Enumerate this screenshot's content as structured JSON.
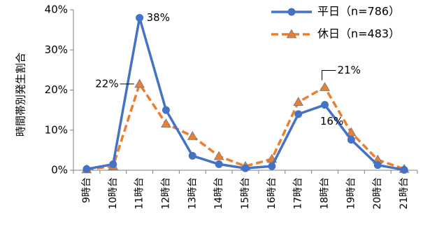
{
  "chart_data": {
    "type": "line",
    "ylabel": "時間帯別発生割合",
    "y_ticks": [
      "0%",
      "10%",
      "20%",
      "30%",
      "40%"
    ],
    "ylim": [
      0,
      40
    ],
    "categories": [
      "9時台",
      "10時台",
      "11時台",
      "12時台",
      "13時台",
      "14時台",
      "15時台",
      "16時台",
      "17時台",
      "18時台",
      "19時台",
      "20時台",
      "21時台"
    ],
    "series": [
      {
        "name": "平日（n=786）",
        "color": "#4472C4",
        "marker": "circle",
        "line_style": "solid",
        "values": [
          0.3,
          1.5,
          38.0,
          15.0,
          3.6,
          1.5,
          0.5,
          1.0,
          14.0,
          16.3,
          7.6,
          1.3,
          0.1
        ]
      },
      {
        "name": "休日（n=483）",
        "color": "#ED7D31",
        "marker": "triangle",
        "line_style": "dashed",
        "values": [
          0.2,
          1.0,
          21.5,
          11.6,
          8.5,
          3.5,
          1.0,
          2.8,
          17.0,
          20.7,
          9.4,
          2.6,
          0.3
        ]
      }
    ],
    "annotations": [
      {
        "text": "38%",
        "series": 0,
        "index": 2
      },
      {
        "text": "22%",
        "series": 1,
        "index": 2
      },
      {
        "text": "21%",
        "series": 1,
        "index": 9
      },
      {
        "text": "16%",
        "series": 0,
        "index": 9
      }
    ],
    "legend": "top-right",
    "grid": false
  }
}
